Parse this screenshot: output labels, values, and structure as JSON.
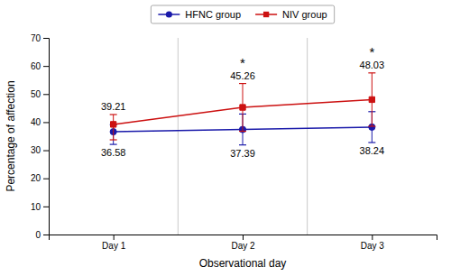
{
  "chart_data": {
    "type": "line",
    "x": [
      1,
      2,
      3
    ],
    "xlim": [
      0.5,
      3.5
    ],
    "xticks": [
      {
        "value": 1,
        "label": "Day 1"
      },
      {
        "value": 2,
        "label": "Day 2"
      },
      {
        "value": 3,
        "label": "Day 3"
      }
    ],
    "xlabel": "Observational day",
    "ylabel": "Percentage of affection",
    "ylim": [
      0,
      70
    ],
    "yticks": [
      0,
      10,
      20,
      30,
      40,
      50,
      60,
      70
    ],
    "grid": false,
    "legend": "top",
    "data_labels": true,
    "series": [
      {
        "name": "HFNC group",
        "color": "#1a1aaa",
        "marker": "circle",
        "values": [
          36.58,
          37.39,
          38.24
        ],
        "errors_up": [
          2.5,
          5.5,
          5.5
        ],
        "errors_down": [
          4.5,
          5.5,
          5.5
        ]
      },
      {
        "name": "NIV group",
        "color": "#cc1111",
        "marker": "square",
        "values": [
          39.21,
          45.26,
          48.03
        ],
        "errors_up": [
          3.5,
          8.5,
          9.5
        ],
        "errors_down": [
          5.5,
          8.5,
          9.5
        ]
      }
    ],
    "annotations": [
      {
        "text": "*",
        "x": 2
      },
      {
        "text": "*",
        "x": 3
      }
    ]
  }
}
